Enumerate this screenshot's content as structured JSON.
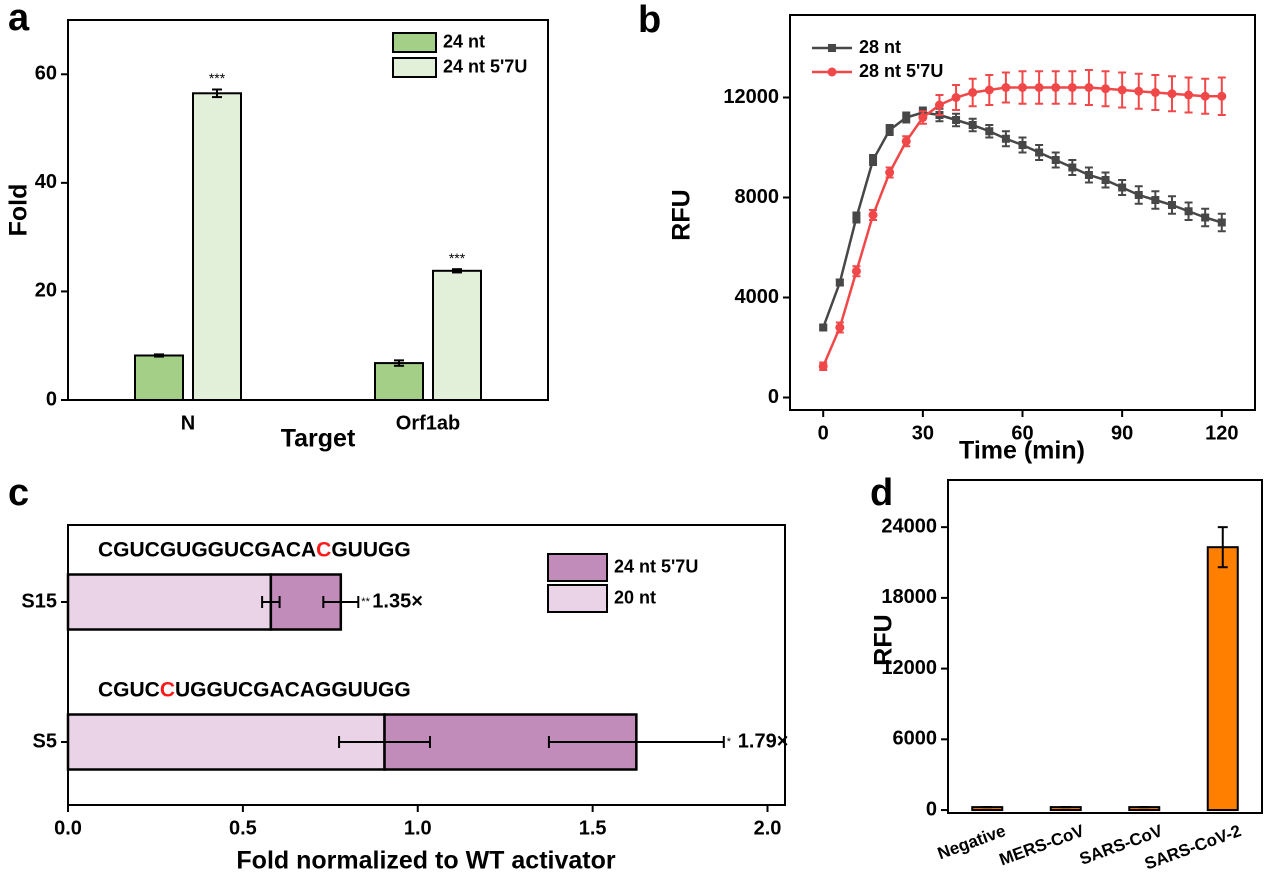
{
  "chart_data": [
    {
      "type": "bar",
      "panel": "a",
      "xlabel": "Target",
      "ylabel": "Fold",
      "categories": [
        "N",
        "Orf1ab"
      ],
      "series": [
        {
          "name": "24 nt",
          "color": "#a3cf87",
          "values": [
            8.2,
            6.8
          ],
          "errors": [
            0.2,
            0.5
          ]
        },
        {
          "name": "24 nt 5'7U",
          "color": "#e2efd9",
          "values": [
            56.5,
            23.8
          ],
          "errors": [
            0.7,
            0.3
          ]
        }
      ],
      "significance": [
        "***",
        "***"
      ],
      "ylim": [
        0,
        70
      ],
      "yticks": [
        0,
        20,
        40,
        60
      ],
      "legend": "upper right"
    },
    {
      "type": "line",
      "panel": "b",
      "xlabel": "Time (min)",
      "ylabel": "RFU",
      "x": [
        0,
        5,
        10,
        15,
        20,
        25,
        30,
        35,
        40,
        45,
        50,
        55,
        60,
        65,
        70,
        75,
        80,
        85,
        90,
        95,
        100,
        105,
        110,
        115,
        120
      ],
      "series": [
        {
          "name": "28 nt",
          "color": "#474747",
          "marker": "square",
          "values": [
            2800,
            4600,
            7200,
            9500,
            10700,
            11200,
            11400,
            11300,
            11100,
            10900,
            10650,
            10350,
            10100,
            9800,
            9500,
            9200,
            8900,
            8700,
            8400,
            8100,
            7900,
            7700,
            7450,
            7200,
            7000
          ],
          "errors": [
            80,
            120,
            200,
            200,
            200,
            200,
            200,
            250,
            250,
            250,
            250,
            300,
            300,
            300,
            300,
            300,
            300,
            300,
            300,
            350,
            350,
            350,
            350,
            350,
            350
          ]
        },
        {
          "name": "28 nt 5'7U",
          "color": "#f04848",
          "marker": "circle",
          "values": [
            1250,
            2800,
            5050,
            7300,
            9000,
            10250,
            11200,
            11700,
            12000,
            12200,
            12300,
            12400,
            12400,
            12400,
            12400,
            12400,
            12400,
            12350,
            12300,
            12250,
            12200,
            12150,
            12100,
            12050,
            12050
          ],
          "errors": [
            150,
            200,
            200,
            200,
            200,
            200,
            250,
            400,
            500,
            550,
            600,
            600,
            650,
            650,
            650,
            650,
            700,
            700,
            700,
            700,
            700,
            700,
            700,
            700,
            750
          ]
        }
      ],
      "xlim": [
        -10,
        130
      ],
      "xticks": [
        0,
        30,
        60,
        90,
        120
      ],
      "ylim": [
        -500,
        15300
      ],
      "yticks": [
        0,
        4000,
        8000,
        12000
      ],
      "legend": "upper left"
    },
    {
      "type": "bar",
      "panel": "c",
      "horizontal": true,
      "stacked": true,
      "xlabel": "Fold normalized to WT activator",
      "categories": [
        "S15",
        "S5"
      ],
      "series": [
        {
          "name": "20 nt",
          "color": "#ead3e6",
          "values": [
            0.58,
            0.905
          ],
          "errors": [
            0.025,
            0.13
          ]
        },
        {
          "name": "24 nt 5'7U",
          "color": "#c18bba",
          "values": [
            0.2,
            0.72
          ],
          "errors": [
            0.05,
            0.25
          ]
        }
      ],
      "sequences": [
        [
          "CGUCGUGGUCGACA",
          "C",
          "GUUGG"
        ],
        [
          "CGUC",
          "C",
          "UGGUCGACAGGUUGG"
        ]
      ],
      "highlight_color": "#ff1a1a",
      "significance": [
        "**",
        "*"
      ],
      "fold_labels": [
        "1.35×",
        "1.79×"
      ],
      "xlim": [
        0,
        2.05
      ],
      "xticks": [
        {
          "value": 0,
          "label": "0.0"
        },
        {
          "value": 0.5,
          "label": "0.5"
        },
        {
          "value": 1,
          "label": "1.0"
        },
        {
          "value": 1.5,
          "label": "1.5"
        },
        {
          "value": 2,
          "label": "2.0"
        }
      ],
      "legend": "upper right"
    },
    {
      "type": "bar",
      "panel": "d",
      "ylabel": "RFU",
      "categories": [
        "Negative",
        "MERS-CoV",
        "SARS-CoV",
        "SARS-CoV-2"
      ],
      "values": [
        250,
        250,
        250,
        22300
      ],
      "errors": [
        0,
        0,
        0,
        1700
      ],
      "color": "#ff8000",
      "ylim": [
        -250,
        28000
      ],
      "yticks": [
        0,
        6000,
        12000,
        18000,
        24000
      ]
    }
  ]
}
